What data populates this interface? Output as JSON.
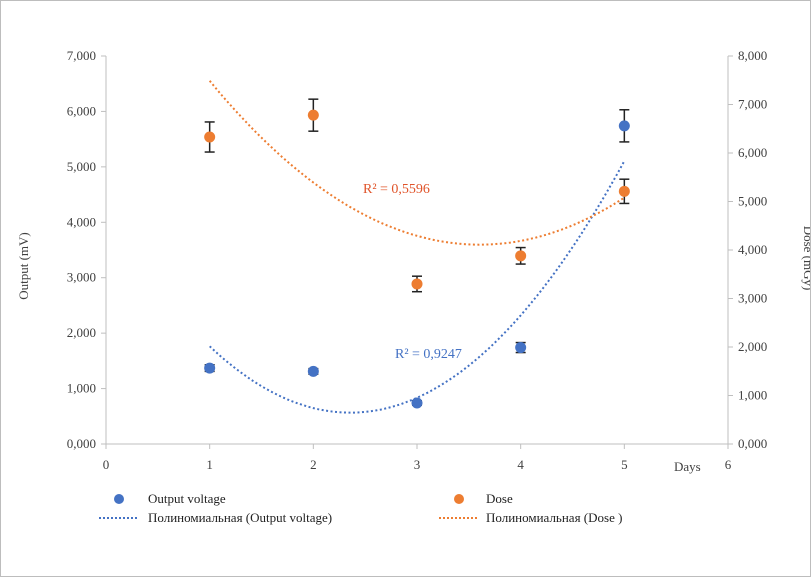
{
  "chart_data": {
    "type": "scatter",
    "xlabel": "Days",
    "ylabel_left": "Output (mV)",
    "ylabel_right": "Dose (mGy)",
    "xlim": [
      0,
      6
    ],
    "ylim_left": [
      0,
      7000
    ],
    "ylim_right": [
      0,
      8000
    ],
    "x_ticks": [
      "0",
      "1",
      "2",
      "3",
      "4",
      "5",
      "6"
    ],
    "y_left_ticks": [
      "0,000",
      "1,000",
      "2,000",
      "3,000",
      "4,000",
      "5,000",
      "6,000",
      "7,000"
    ],
    "y_right_ticks": [
      "0,000",
      "1,000",
      "2,000",
      "3,000",
      "4,000",
      "5,000",
      "6,000",
      "7,000",
      "8,000"
    ],
    "series": [
      {
        "name": "Output voltage",
        "axis": "left",
        "color": "#4472c4",
        "x": [
          1,
          2,
          3,
          4,
          5
        ],
        "y": [
          1370,
          1310,
          740,
          1740,
          5740
        ],
        "err": [
          60,
          50,
          40,
          90,
          290
        ]
      },
      {
        "name": "Dose",
        "axis": "right",
        "color": "#ed7d31",
        "x": [
          1,
          2,
          3,
          4,
          5
        ],
        "y": [
          6330,
          6780,
          3300,
          3880,
          5210
        ],
        "err": [
          310,
          330,
          160,
          170,
          250
        ]
      }
    ],
    "trendlines": [
      {
        "name": "Полиномиальная (Output voltage)",
        "axis": "left",
        "color": "#4472c4",
        "coeffs": [
          4176.4,
          -3064.0,
          650.0
        ],
        "x_range": [
          1,
          5
        ],
        "r2_label": "R² = 0,9247"
      },
      {
        "name": "Полиномиальная (Dose )",
        "axis": "right",
        "color": "#ed7d31",
        "coeffs": [
          10580.0,
          -3590.0,
          498.0
        ],
        "x_range": [
          1,
          5
        ],
        "r2_label": "R² = 0,5596"
      }
    ],
    "grid": false,
    "legend": "bottom"
  }
}
